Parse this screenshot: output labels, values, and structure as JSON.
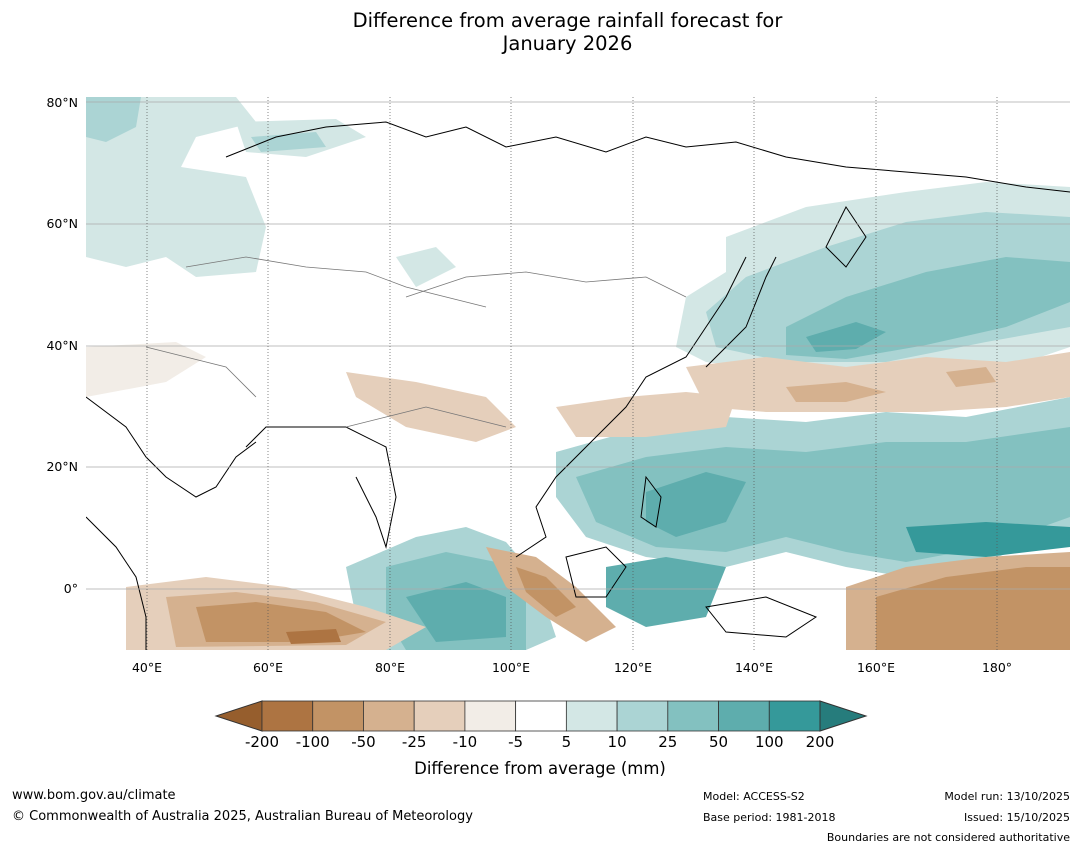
{
  "title": {
    "line1": "Difference from average rainfall forecast for",
    "line2": "January 2026"
  },
  "map": {
    "projection": "Plate Carrée",
    "region": "Asia / Western Pacific",
    "lon_range": [
      30,
      192
    ],
    "lat_range": [
      -11,
      80
    ],
    "lat_ticks": [
      "80°N",
      "60°N",
      "40°N",
      "20°N",
      "0°"
    ],
    "lon_ticks": [
      "40°E",
      "60°E",
      "80°E",
      "100°E",
      "120°E",
      "140°E",
      "160°E",
      "180°"
    ]
  },
  "colorbar": {
    "labels": [
      "-200",
      "-100",
      "-50",
      "-25",
      "-10",
      "-5",
      "5",
      "10",
      "25",
      "50",
      "100",
      "200"
    ],
    "colors": [
      "#ad7442",
      "#c29365",
      "#d5b18f",
      "#e5cfbb",
      "#f2ede7",
      "#ffffff",
      "#d3e7e5",
      "#abd4d4",
      "#83c1c0",
      "#5eadad",
      "#35999a"
    ],
    "under_color": "#965e2d",
    "over_color": "#267c7c",
    "title": "Difference from average (mm)"
  },
  "footer": {
    "url": "www.bom.gov.au/climate",
    "copyright": "© Commonwealth of Australia 2025, Australian Bureau of Meteorology",
    "model": "Model: ACCESS-S2",
    "base_period": "Base period: 1981-2018",
    "model_run": "Model run: 13/10/2025",
    "issued": "Issued: 15/10/2025",
    "disclaimer": "Boundaries are not considered authoritative"
  }
}
